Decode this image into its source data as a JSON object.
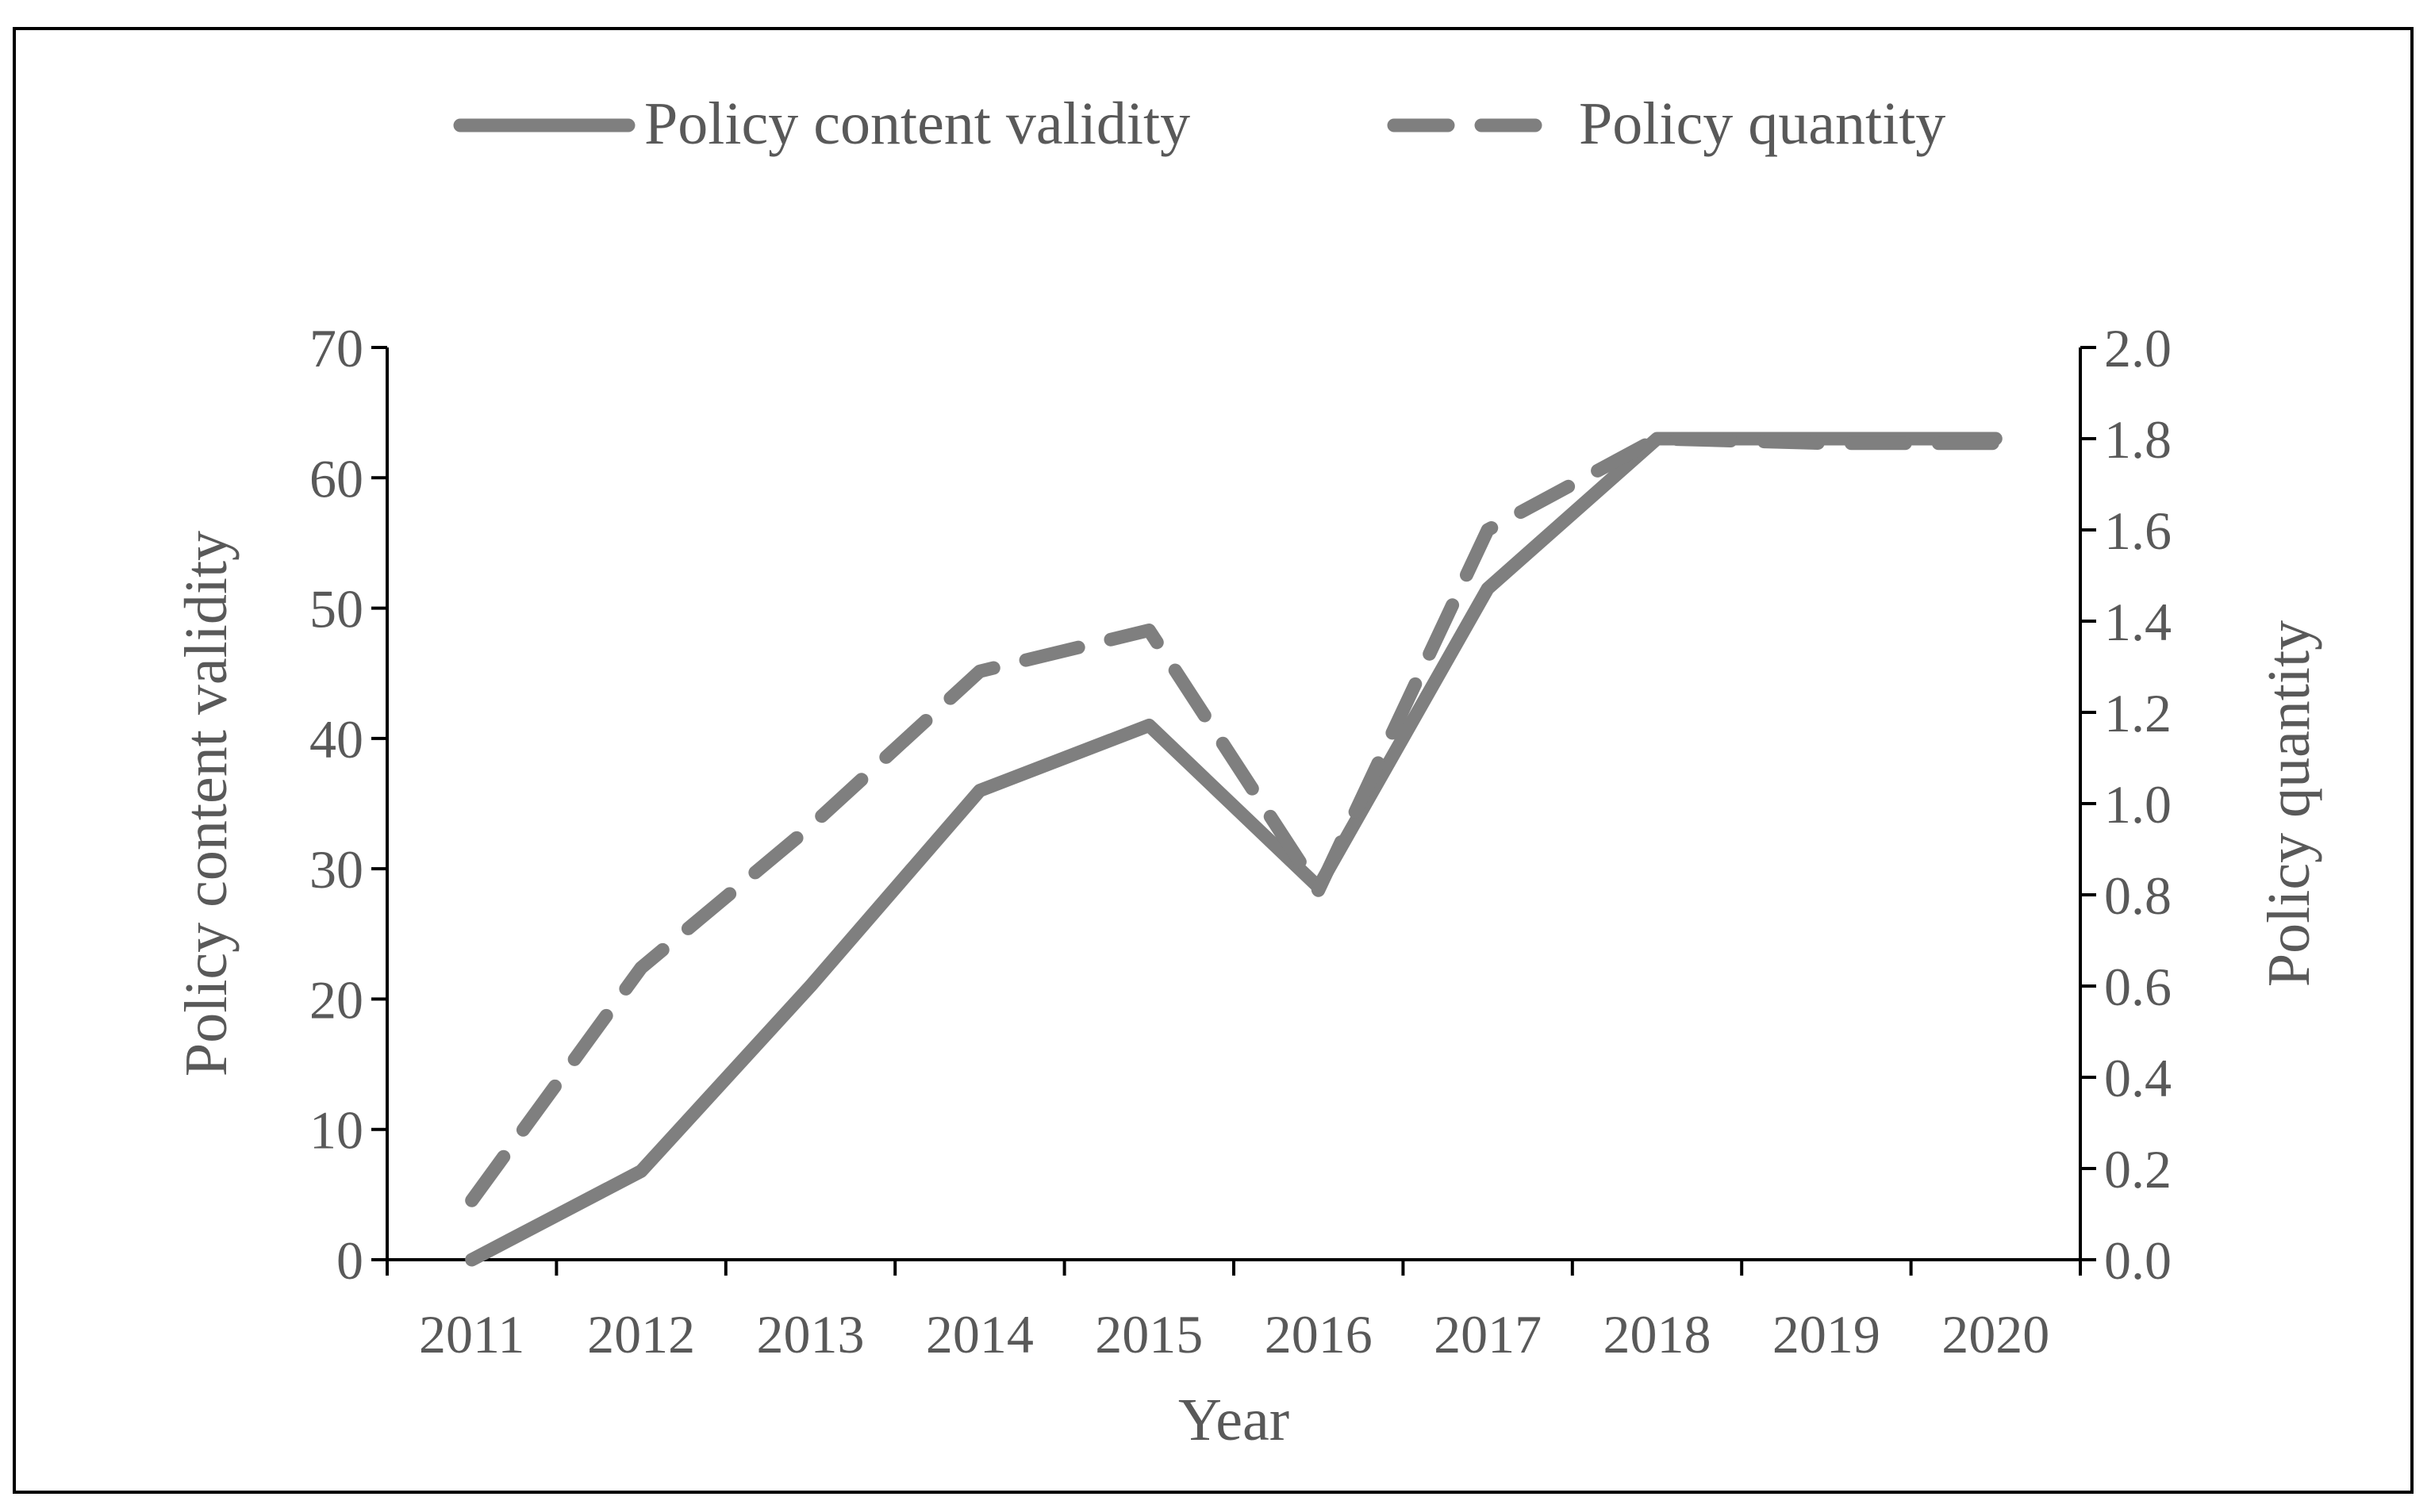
{
  "chart_data": {
    "type": "line",
    "title": "",
    "xlabel": "Year",
    "ylabel_left": "Policy content validity",
    "ylabel_right": "Policy quantity",
    "categories": [
      "2011",
      "2012",
      "2013",
      "2014",
      "2015",
      "2016",
      "2017",
      "2018",
      "2019",
      "2020"
    ],
    "ylim_left": [
      0,
      70
    ],
    "ylim_right": [
      0,
      2.0
    ],
    "yticks_left": [
      "0",
      "10",
      "20",
      "30",
      "40",
      "50",
      "60",
      "70"
    ],
    "yticks_right": [
      "0.0",
      "0.2",
      "0.4",
      "0.6",
      "0.8",
      "1.0",
      "1.2",
      "1.4",
      "1.6",
      "1.8",
      "2.0"
    ],
    "grid": false,
    "legend_position": "top-center",
    "series": [
      {
        "name": "Policy content validity",
        "axis": "left",
        "style": "solid",
        "values": [
          0,
          6.8,
          21,
          36,
          41,
          28.6,
          51.5,
          63,
          63,
          63
        ]
      },
      {
        "name": "Policy quantity",
        "axis": "right",
        "style": "dashed",
        "values": [
          0.13,
          0.64,
          0.95,
          1.29,
          1.38,
          0.81,
          1.6,
          1.8,
          1.79,
          1.79
        ]
      }
    ],
    "colors": {
      "line": "#7f7f7f",
      "axis": "#000000",
      "text": "#595959"
    }
  }
}
